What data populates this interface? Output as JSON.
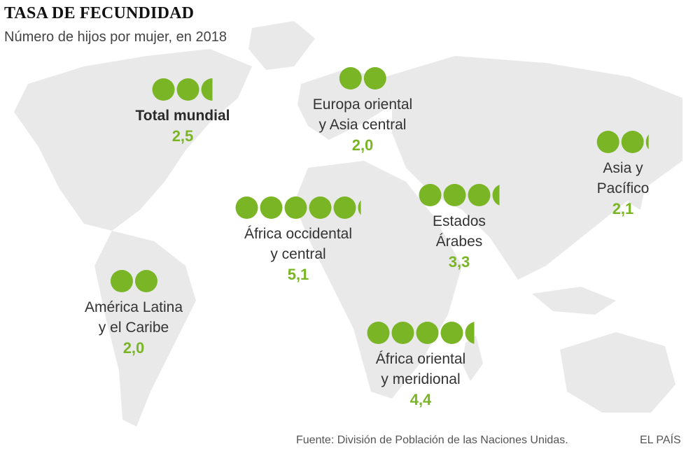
{
  "header": {
    "title": "TASA DE FECUNDIDAD",
    "subtitle": "Número de hijos por mujer, en 2018"
  },
  "regions": [
    {
      "name_lines": [
        "Total mundial"
      ],
      "value_label": "2,5",
      "value": 2.5,
      "bold": true
    },
    {
      "name_lines": [
        "Europa oriental",
        "y Asia central"
      ],
      "value_label": "2,0",
      "value": 2.0
    },
    {
      "name_lines": [
        "Asia y",
        "Pacífico"
      ],
      "value_label": "2,1",
      "value": 2.1
    },
    {
      "name_lines": [
        "África occidental",
        "y central"
      ],
      "value_label": "5,1",
      "value": 5.1
    },
    {
      "name_lines": [
        "Estados",
        "Árabes"
      ],
      "value_label": "3,3",
      "value": 3.3
    },
    {
      "name_lines": [
        "América Latina",
        "y el Caribe"
      ],
      "value_label": "2,0",
      "value": 2.0
    },
    {
      "name_lines": [
        "África oriental",
        "y meridional"
      ],
      "value_label": "4,4",
      "value": 4.4
    }
  ],
  "footer": {
    "source": "Fuente: División de Población de las Naciones Unidas.",
    "brand": "EL PAÍS"
  },
  "colors": {
    "accent": "#7ab526",
    "land": "#e9e9e9"
  }
}
